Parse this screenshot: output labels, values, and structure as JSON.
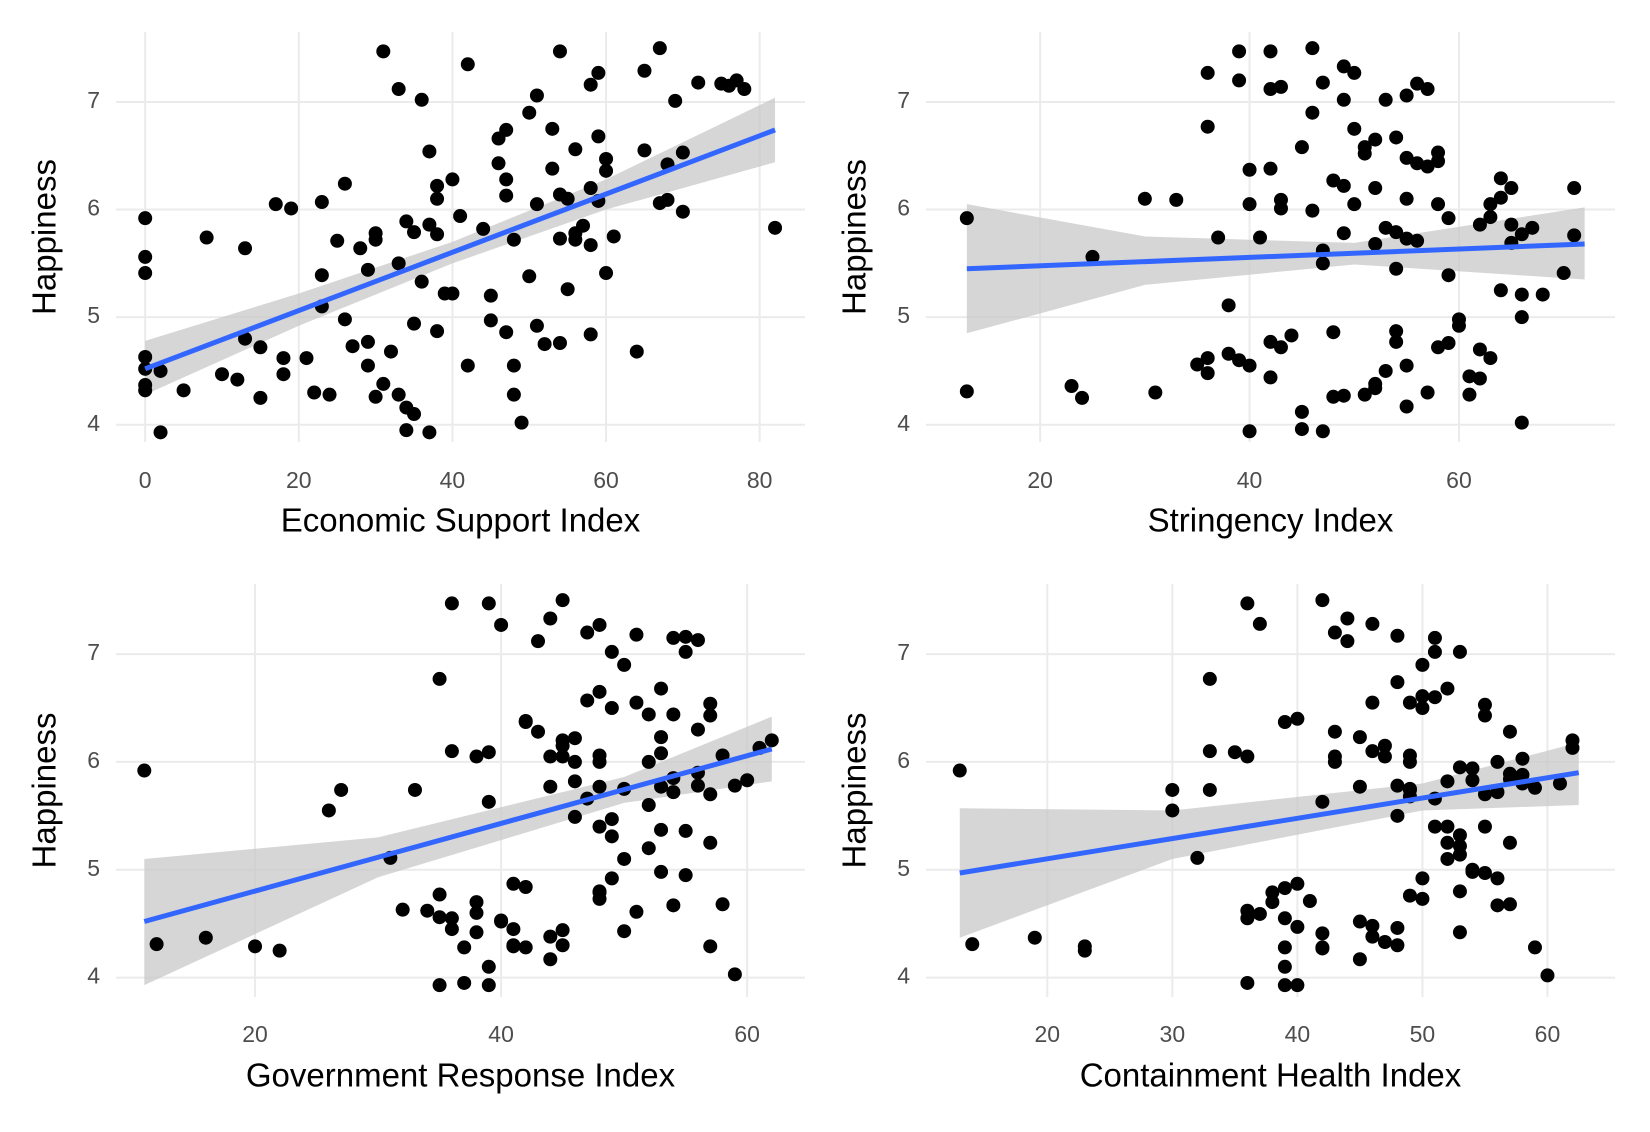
{
  "chart_data": [
    {
      "type": "scatter",
      "x_label": "Economic Support Index",
      "y_label": "Happiness",
      "color": "#000000",
      "grid": true,
      "xlim": [
        -3.8,
        85.9
      ],
      "ylim": [
        3.84,
        7.65
      ],
      "xticks": [
        0,
        20,
        40,
        60,
        80
      ],
      "yticks": [
        4,
        5,
        6,
        7
      ],
      "x": [
        0,
        0,
        0,
        0,
        0,
        0,
        0,
        2,
        2,
        5,
        8,
        10,
        12,
        13,
        13,
        15,
        15,
        17,
        18,
        18,
        19,
        21,
        22,
        23,
        23,
        23,
        24,
        25,
        26,
        26,
        27,
        28,
        29,
        29,
        29,
        30,
        30,
        30,
        31,
        31,
        32,
        33,
        33,
        33,
        34,
        34,
        34,
        35,
        35,
        35,
        36,
        36,
        37,
        37,
        37,
        38,
        38,
        38,
        38,
        39,
        40,
        40,
        41,
        42,
        42,
        44,
        45,
        45,
        46,
        46,
        47,
        47,
        47,
        47,
        48,
        48,
        48,
        49,
        50,
        50,
        51,
        51,
        51,
        52,
        53,
        53,
        54,
        54,
        54,
        54,
        55,
        55,
        56,
        56,
        56,
        57,
        58,
        58,
        58,
        58,
        59,
        59,
        59,
        60,
        60,
        60,
        61,
        64,
        65,
        65,
        67,
        67,
        68,
        68,
        69,
        70,
        70,
        72,
        75,
        76,
        77,
        78,
        82
      ],
      "y": [
        5.92,
        5.56,
        5.41,
        4.63,
        4.52,
        4.37,
        4.32,
        4.5,
        3.93,
        4.32,
        5.74,
        4.47,
        4.42,
        5.64,
        4.8,
        4.72,
        4.25,
        6.05,
        4.62,
        4.47,
        6.01,
        4.62,
        4.3,
        6.07,
        5.39,
        5.1,
        4.28,
        5.71,
        6.24,
        4.98,
        4.73,
        5.64,
        4.55,
        4.77,
        5.44,
        5.78,
        5.72,
        4.26,
        4.38,
        7.47,
        4.68,
        4.28,
        7.12,
        5.5,
        4.16,
        3.95,
        5.89,
        4.1,
        5.79,
        4.94,
        7.02,
        5.33,
        5.86,
        3.93,
        6.54,
        6.1,
        5.77,
        4.87,
        6.22,
        5.22,
        6.28,
        5.22,
        5.94,
        7.35,
        4.55,
        5.82,
        5.2,
        4.97,
        6.66,
        6.43,
        6.28,
        6.13,
        4.86,
        6.74,
        5.72,
        4.28,
        4.55,
        4.02,
        6.9,
        5.38,
        7.06,
        6.05,
        4.92,
        4.75,
        6.38,
        6.75,
        5.73,
        7.47,
        6.14,
        4.76,
        5.26,
        6.1,
        6.56,
        5.78,
        5.72,
        5.85,
        7.16,
        6.2,
        5.67,
        4.84,
        7.27,
        6.08,
        6.68,
        6.36,
        6.47,
        5.41,
        5.75,
        4.68,
        7.29,
        6.55,
        7.5,
        6.06,
        6.42,
        6.09,
        7.01,
        5.98,
        6.53,
        7.18,
        7.17,
        7.15,
        7.2,
        7.12,
        5.83
      ],
      "fit": {
        "color": "#3366ff",
        "x": [
          0,
          82
        ],
        "y": [
          4.52,
          6.74
        ]
      },
      "band": {
        "color": "#c8c8c8",
        "x": [
          0,
          20,
          40,
          60,
          82
        ],
        "lower": [
          4.28,
          4.92,
          5.5,
          6.0,
          6.44
        ],
        "upper": [
          4.78,
          5.22,
          5.7,
          6.28,
          7.04
        ]
      }
    },
    {
      "type": "scatter",
      "x_label": "Stringency Index",
      "y_label": "Happiness",
      "color": "#000000",
      "grid": true,
      "xlim": [
        9.1,
        74.9
      ],
      "ylim": [
        3.84,
        7.65
      ],
      "xticks": [
        20,
        40,
        60
      ],
      "yticks": [
        4,
        5,
        6,
        7
      ],
      "x": [
        13,
        13,
        23,
        24,
        25,
        30,
        31,
        33,
        35,
        36,
        36,
        36,
        36,
        37,
        38,
        38,
        39,
        39,
        39,
        40,
        40,
        40,
        40,
        41,
        42,
        42,
        42,
        42,
        42,
        43,
        43,
        43,
        43,
        44,
        45,
        45,
        45,
        46,
        46,
        46,
        47,
        47,
        47,
        47,
        48,
        48,
        48,
        49,
        49,
        49,
        49,
        49,
        50,
        50,
        50,
        51,
        51,
        51,
        52,
        52,
        52,
        52,
        52,
        53,
        53,
        53,
        54,
        54,
        54,
        54,
        54,
        55,
        55,
        55,
        55,
        55,
        55,
        56,
        56,
        56,
        57,
        57,
        57,
        58,
        58,
        58,
        58,
        59,
        59,
        59,
        60,
        60,
        61,
        61,
        62,
        62,
        62,
        63,
        63,
        63,
        64,
        64,
        64,
        65,
        65,
        65,
        66,
        66,
        66,
        66,
        67,
        68,
        70,
        71,
        71
      ],
      "y": [
        5.92,
        4.31,
        4.36,
        4.25,
        5.56,
        6.1,
        4.3,
        6.09,
        4.56,
        4.48,
        4.62,
        7.27,
        6.77,
        5.74,
        5.11,
        4.66,
        7.47,
        4.6,
        7.2,
        4.55,
        6.37,
        6.05,
        3.94,
        5.74,
        4.77,
        4.44,
        7.12,
        6.38,
        7.47,
        7.14,
        6.09,
        6.01,
        4.72,
        4.83,
        6.58,
        3.96,
        4.12,
        7.5,
        6.9,
        5.99,
        3.94,
        5.62,
        5.5,
        7.18,
        6.27,
        4.86,
        4.26,
        7.02,
        6.22,
        4.27,
        7.33,
        5.78,
        7.27,
        6.05,
        6.75,
        6.58,
        6.52,
        4.28,
        6.65,
        4.34,
        5.68,
        6.2,
        4.38,
        7.02,
        5.83,
        4.5,
        5.79,
        5.45,
        4.77,
        4.87,
        6.67,
        7.06,
        6.48,
        4.55,
        6.1,
        4.17,
        5.73,
        6.43,
        7.17,
        5.71,
        7.12,
        6.4,
        4.3,
        6.45,
        6.05,
        4.72,
        6.53,
        5.92,
        5.39,
        4.76,
        4.98,
        4.92,
        4.45,
        4.28,
        5.86,
        4.7,
        4.43,
        5.93,
        4.62,
        6.05,
        6.29,
        5.25,
        6.11,
        6.2,
        5.69,
        5.86,
        5.0,
        5.77,
        5.21,
        4.02,
        5.83,
        5.21,
        5.41,
        5.76,
        6.2
      ],
      "fit": {
        "color": "#3366ff",
        "x": [
          13,
          72
        ],
        "y": [
          5.45,
          5.68
        ]
      },
      "band": {
        "color": "#c8c8c8",
        "x": [
          13,
          30,
          50,
          72
        ],
        "lower": [
          4.85,
          5.3,
          5.49,
          5.35
        ],
        "upper": [
          6.05,
          5.75,
          5.69,
          6.02
        ]
      }
    },
    {
      "type": "scatter",
      "x_label": "Government Response Index",
      "y_label": "Happiness",
      "color": "#000000",
      "grid": true,
      "xlim": [
        8.7,
        64.7
      ],
      "ylim": [
        3.82,
        7.65
      ],
      "xticks": [
        20,
        40,
        60
      ],
      "yticks": [
        4,
        5,
        6,
        7
      ],
      "x": [
        11,
        12,
        16,
        20,
        22,
        26,
        27,
        31,
        32,
        33,
        34,
        35,
        35,
        35,
        35,
        36,
        36,
        36,
        36,
        37,
        37,
        38,
        38,
        38,
        38,
        39,
        39,
        39,
        39,
        39,
        40,
        40,
        40,
        41,
        41,
        41,
        41,
        42,
        42,
        42,
        42,
        43,
        43,
        44,
        44,
        44,
        44,
        44,
        45,
        45,
        45,
        45,
        45,
        45,
        46,
        46,
        46,
        46,
        47,
        47,
        47,
        48,
        48,
        48,
        48,
        48,
        48,
        48,
        48,
        48,
        49,
        49,
        49,
        49,
        49,
        50,
        50,
        50,
        50,
        51,
        51,
        51,
        52,
        52,
        52,
        52,
        53,
        53,
        53,
        53,
        53,
        53,
        54,
        54,
        54,
        54,
        54,
        55,
        55,
        55,
        55,
        56,
        56,
        56,
        56,
        57,
        57,
        57,
        57,
        57,
        58,
        58,
        59,
        59,
        60,
        61,
        62
      ],
      "y": [
        5.92,
        4.31,
        4.37,
        4.29,
        4.25,
        5.55,
        5.74,
        5.11,
        4.63,
        5.74,
        4.62,
        4.56,
        3.93,
        6.77,
        4.77,
        7.47,
        6.1,
        4.45,
        4.55,
        3.95,
        4.28,
        6.05,
        4.7,
        4.6,
        4.42,
        7.47,
        4.1,
        3.93,
        5.63,
        6.09,
        4.53,
        4.52,
        7.27,
        4.87,
        4.45,
        4.3,
        4.29,
        6.37,
        4.28,
        4.84,
        6.38,
        7.12,
        6.28,
        4.17,
        7.33,
        5.77,
        6.05,
        4.38,
        4.44,
        7.5,
        4.3,
        6.2,
        6.15,
        6.05,
        6.22,
        5.82,
        6.0,
        5.49,
        6.57,
        7.2,
        5.66,
        4.79,
        4.8,
        7.27,
        4.73,
        6.65,
        6.06,
        5.4,
        6.0,
        5.77,
        5.31,
        4.92,
        5.47,
        7.02,
        6.5,
        5.1,
        6.9,
        4.43,
        5.75,
        4.61,
        6.55,
        7.18,
        6.0,
        6.44,
        5.6,
        5.2,
        6.68,
        5.37,
        6.23,
        6.08,
        5.77,
        4.98,
        6.44,
        7.15,
        5.72,
        4.67,
        5.85,
        4.95,
        5.36,
        7.16,
        7.02,
        5.9,
        7.13,
        5.78,
        6.3,
        6.43,
        5.25,
        6.54,
        4.29,
        5.7,
        6.06,
        4.68,
        5.78,
        4.03,
        5.83,
        6.13,
        6.2
      ],
      "fit": {
        "color": "#3366ff",
        "x": [
          11,
          62
        ],
        "y": [
          4.52,
          6.12
        ]
      },
      "band": {
        "color": "#c8c8c8",
        "x": [
          11,
          30,
          50,
          62
        ],
        "lower": [
          3.93,
          4.93,
          5.62,
          5.82
        ],
        "upper": [
          5.1,
          5.3,
          5.86,
          6.42
        ]
      }
    },
    {
      "type": "scatter",
      "x_label": "Containment Health Index",
      "y_label": "Happiness",
      "color": "#000000",
      "grid": true,
      "xlim": [
        10.3,
        65.4
      ],
      "ylim": [
        3.82,
        7.65
      ],
      "xticks": [
        20,
        30,
        40,
        50,
        60
      ],
      "yticks": [
        4,
        5,
        6,
        7
      ],
      "x": [
        13,
        14,
        19,
        23,
        23,
        30,
        30,
        32,
        33,
        33,
        33,
        35,
        36,
        36,
        36,
        36,
        36,
        37,
        37,
        38,
        38,
        39,
        39,
        39,
        39,
        39,
        39,
        40,
        40,
        40,
        40,
        41,
        42,
        42,
        42,
        42,
        42,
        43,
        43,
        43,
        43,
        44,
        44,
        45,
        45,
        45,
        45,
        46,
        46,
        46,
        46,
        46,
        47,
        47,
        47,
        48,
        48,
        48,
        48,
        48,
        48,
        49,
        49,
        49,
        49,
        49,
        49,
        49,
        50,
        50,
        50,
        50,
        50,
        51,
        51,
        51,
        51,
        51,
        52,
        52,
        52,
        52,
        52,
        53,
        53,
        53,
        53,
        53,
        53,
        53,
        54,
        54,
        54,
        54,
        55,
        55,
        55,
        55,
        55,
        56,
        56,
        56,
        56,
        57,
        57,
        57,
        57,
        57,
        58,
        58,
        58,
        59,
        59,
        60,
        61,
        62,
        62
      ],
      "y": [
        5.92,
        4.31,
        4.37,
        4.29,
        4.25,
        5.74,
        5.55,
        5.11,
        6.77,
        5.74,
        6.1,
        6.09,
        6.05,
        4.62,
        4.55,
        3.95,
        7.47,
        4.59,
        7.28,
        4.79,
        4.7,
        6.37,
        3.93,
        4.83,
        4.28,
        4.55,
        4.1,
        3.93,
        4.47,
        6.4,
        4.87,
        4.71,
        7.5,
        5.63,
        4.41,
        4.28,
        4.27,
        7.2,
        6.05,
        6.0,
        6.28,
        7.12,
        7.33,
        5.77,
        6.23,
        4.52,
        4.17,
        7.28,
        6.1,
        4.48,
        4.38,
        6.55,
        6.15,
        6.05,
        4.33,
        5.5,
        5.78,
        4.3,
        4.46,
        6.74,
        7.17,
        4.76,
        6.06,
        6.55,
        6.0,
        5.74,
        5.68,
        5.75,
        6.61,
        6.9,
        6.5,
        4.92,
        4.73,
        6.6,
        7.02,
        7.15,
        5.66,
        5.4,
        5.1,
        5.25,
        6.68,
        5.4,
        5.82,
        5.32,
        4.42,
        4.8,
        7.02,
        5.95,
        5.22,
        5.14,
        4.98,
        5.83,
        5.0,
        5.94,
        6.43,
        6.53,
        4.97,
        5.4,
        5.7,
        4.92,
        4.67,
        6.0,
        5.72,
        6.28,
        4.68,
        5.84,
        5.25,
        5.89,
        6.03,
        5.88,
        5.8,
        4.28,
        5.76,
        4.02,
        5.8,
        6.13,
        6.2
      ],
      "fit": {
        "color": "#3366ff",
        "x": [
          13,
          62.5
        ],
        "y": [
          4.97,
          5.9
        ]
      },
      "band": {
        "color": "#c8c8c8",
        "x": [
          13,
          30,
          50,
          62.5
        ],
        "lower": [
          4.37,
          5.1,
          5.55,
          5.6
        ],
        "upper": [
          5.57,
          5.55,
          5.8,
          6.18
        ]
      }
    }
  ]
}
